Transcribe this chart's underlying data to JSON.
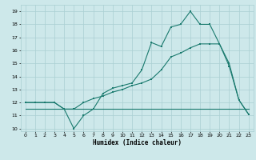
{
  "xlabel": "Humidex (Indice chaleur)",
  "bg_color": "#cde8ea",
  "grid_color": "#aacfd2",
  "line_color": "#1a7a6e",
  "x_ticks": [
    0,
    1,
    2,
    3,
    4,
    5,
    6,
    7,
    8,
    9,
    10,
    11,
    12,
    13,
    14,
    15,
    16,
    17,
    18,
    19,
    20,
    21,
    22,
    23
  ],
  "y_ticks": [
    10,
    11,
    12,
    13,
    14,
    15,
    16,
    17,
    18,
    19
  ],
  "ylim": [
    9.8,
    19.5
  ],
  "xlim": [
    -0.5,
    23.5
  ],
  "line1_x": [
    0,
    1,
    2,
    3,
    4,
    5,
    6,
    7,
    8,
    9,
    10,
    11,
    12,
    13,
    14,
    15,
    16,
    17,
    18,
    19,
    20,
    21,
    22,
    23
  ],
  "line1_y": [
    12,
    12,
    12,
    12,
    11.5,
    10.0,
    11.0,
    11.5,
    12.7,
    13.1,
    13.3,
    13.5,
    14.5,
    16.6,
    16.3,
    17.8,
    18.0,
    19.0,
    18.0,
    18.0,
    16.5,
    14.8,
    12.2,
    11.1
  ],
  "line2_x": [
    0,
    1,
    2,
    3,
    4,
    5,
    6,
    7,
    8,
    9,
    10,
    11,
    12,
    13,
    14,
    15,
    16,
    17,
    18,
    19,
    20,
    21,
    22,
    23
  ],
  "line2_y": [
    12,
    12,
    12,
    12,
    11.5,
    11.5,
    12.0,
    12.3,
    12.5,
    12.8,
    13.0,
    13.3,
    13.5,
    13.8,
    14.5,
    15.5,
    15.8,
    16.2,
    16.5,
    16.5,
    16.5,
    15.0,
    12.2,
    11.1
  ],
  "line3_x": [
    0,
    1,
    2,
    3,
    4,
    5,
    6,
    7,
    8,
    9,
    10,
    11,
    12,
    13,
    14,
    15,
    16,
    17,
    18,
    19,
    20,
    21,
    22,
    23
  ],
  "line3_y": [
    11.5,
    11.5,
    11.5,
    11.5,
    11.5,
    11.5,
    11.5,
    11.5,
    11.5,
    11.5,
    11.5,
    11.5,
    11.5,
    11.5,
    11.5,
    11.5,
    11.5,
    11.5,
    11.5,
    11.5,
    11.5,
    11.5,
    11.5,
    11.5
  ]
}
